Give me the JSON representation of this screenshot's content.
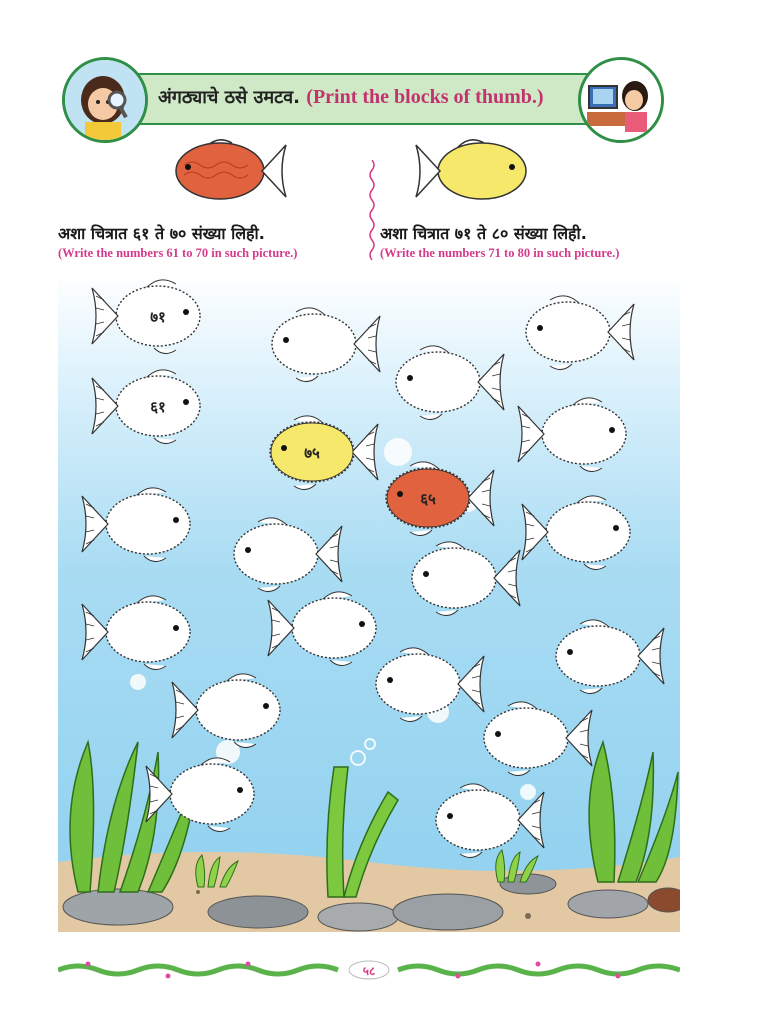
{
  "header": {
    "title_marathi": "अंगठ्याचे ठसे उमटव.",
    "title_english": "(Print the blocks of thumb.)"
  },
  "left_instruction": {
    "marathi": "अशा चित्रात ६१ ते ७० संख्या लिही.",
    "english": "(Write the numbers 61 to 70 in such picture.)"
  },
  "right_instruction": {
    "marathi": "अशा चित्रात ७१ ते ८० संख्या लिही.",
    "english": "(Write the numbers 71 to 80 in such picture.)"
  },
  "fish_labels": {
    "f1": "७१",
    "f2": "६१",
    "f3": "७५",
    "f4": "६५"
  },
  "page_number": "५८",
  "colors": {
    "red_fish": "#e0623e",
    "yellow_fish": "#f5e86a",
    "water": "#8fd0ef",
    "banner": "#cfe9c6",
    "accent": "#c2326e"
  }
}
